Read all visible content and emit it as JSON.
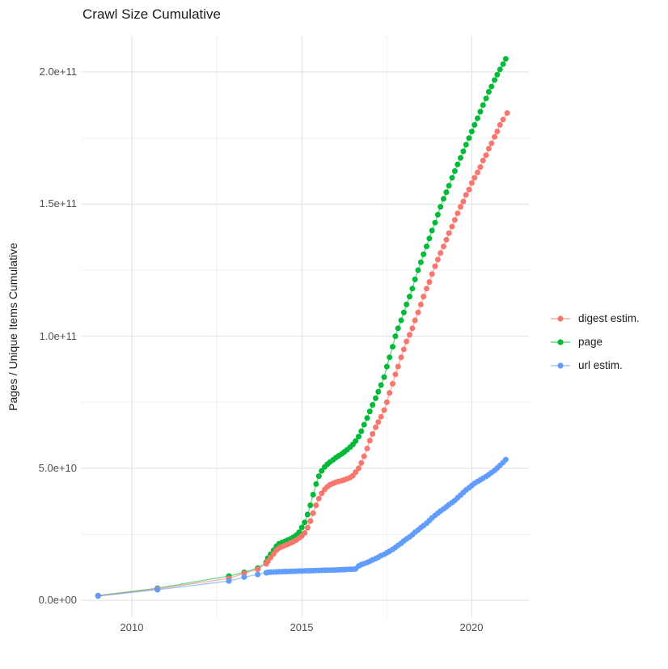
{
  "chart_data": {
    "type": "scatter",
    "title": "Crawl Size Cumulative",
    "xlabel": "",
    "ylabel": "Pages / Unique Items Cumulative",
    "y_unit": "items, values stored in units of 1e9 (billions)",
    "x_ticks": [
      2010,
      2015,
      2020
    ],
    "x_tick_labels": [
      "2010",
      "2015",
      "2020"
    ],
    "x_minor_ticks": [
      2012.5,
      2017.5
    ],
    "y_ticks": [
      0,
      50,
      100,
      150,
      200
    ],
    "y_tick_labels": [
      "0.0e+00",
      "5.0e+10",
      "1.0e+11",
      "1.5e+11",
      "2.0e+11"
    ],
    "y_minor_ticks": [
      25,
      75,
      125,
      175
    ],
    "xlim": [
      2008.52,
      2021.68
    ],
    "ylim": [
      -6.4,
      213.8
    ],
    "grid": true,
    "legend_position": "right",
    "major_grid_color": "#e3e3e3",
    "minor_grid_color": "#f0f0f0",
    "series": [
      {
        "name": "digest estim.",
        "color": "#F8766D",
        "points": [
          [
            2009.0,
            1.7
          ],
          [
            2010.75,
            4.35
          ],
          [
            2012.85,
            8.3
          ],
          [
            2013.3,
            10.2
          ],
          [
            2013.7,
            11.8
          ],
          [
            2013.95,
            13.8
          ],
          [
            2014.0,
            14.8
          ],
          [
            2014.08,
            16.2
          ],
          [
            2014.17,
            17.6
          ],
          [
            2014.25,
            19.0
          ],
          [
            2014.33,
            19.8
          ],
          [
            2014.42,
            20.3
          ],
          [
            2014.5,
            20.8
          ],
          [
            2014.58,
            21.2
          ],
          [
            2014.67,
            21.7
          ],
          [
            2014.75,
            22.2
          ],
          [
            2014.83,
            22.8
          ],
          [
            2014.92,
            23.6
          ],
          [
            2015.0,
            24.4
          ],
          [
            2015.08,
            25.5
          ],
          [
            2015.17,
            27.5
          ],
          [
            2015.25,
            30.0
          ],
          [
            2015.33,
            33.0
          ],
          [
            2015.42,
            36.0
          ],
          [
            2015.5,
            38.5
          ],
          [
            2015.58,
            40.5
          ],
          [
            2015.67,
            42.0
          ],
          [
            2015.75,
            43.0
          ],
          [
            2015.83,
            43.8
          ],
          [
            2015.92,
            44.3
          ],
          [
            2016.0,
            44.7
          ],
          [
            2016.08,
            45.0
          ],
          [
            2016.17,
            45.3
          ],
          [
            2016.25,
            45.6
          ],
          [
            2016.33,
            46.0
          ],
          [
            2016.42,
            46.5
          ],
          [
            2016.5,
            47.2
          ],
          [
            2016.58,
            48.5
          ],
          [
            2016.67,
            50.0
          ],
          [
            2016.75,
            52.0
          ],
          [
            2016.83,
            54.5
          ],
          [
            2016.92,
            57.5
          ],
          [
            2017.0,
            60.5
          ],
          [
            2017.08,
            63.0
          ],
          [
            2017.17,
            65.5
          ],
          [
            2017.25,
            67.5
          ],
          [
            2017.33,
            69.5
          ],
          [
            2017.42,
            72.0
          ],
          [
            2017.5,
            75.0
          ],
          [
            2017.58,
            78.5
          ],
          [
            2017.67,
            82.0
          ],
          [
            2017.75,
            85.5
          ],
          [
            2017.83,
            88.5
          ],
          [
            2017.92,
            92.0
          ],
          [
            2018.0,
            95.0
          ],
          [
            2018.08,
            98.0
          ],
          [
            2018.17,
            100.5
          ],
          [
            2018.25,
            103.0
          ],
          [
            2018.33,
            106.0
          ],
          [
            2018.42,
            109.0
          ],
          [
            2018.5,
            112.0
          ],
          [
            2018.58,
            115.0
          ],
          [
            2018.67,
            118.0
          ],
          [
            2018.75,
            120.5
          ],
          [
            2018.83,
            123.5
          ],
          [
            2018.92,
            126.5
          ],
          [
            2019.0,
            129.0
          ],
          [
            2019.08,
            131.5
          ],
          [
            2019.17,
            134.0
          ],
          [
            2019.25,
            136.5
          ],
          [
            2019.33,
            139.0
          ],
          [
            2019.42,
            141.5
          ],
          [
            2019.5,
            144.0
          ],
          [
            2019.58,
            146.5
          ],
          [
            2019.67,
            149.0
          ],
          [
            2019.75,
            151.0
          ],
          [
            2019.83,
            153.5
          ],
          [
            2019.92,
            155.5
          ],
          [
            2020.0,
            158.0
          ],
          [
            2020.08,
            160.0
          ],
          [
            2020.17,
            162.0
          ],
          [
            2020.25,
            164.0
          ],
          [
            2020.33,
            166.5
          ],
          [
            2020.42,
            168.5
          ],
          [
            2020.5,
            171.0
          ],
          [
            2020.58,
            173.0
          ],
          [
            2020.67,
            175.5
          ],
          [
            2020.75,
            177.5
          ],
          [
            2020.83,
            180.0
          ],
          [
            2020.92,
            182.0
          ],
          [
            2021.04,
            184.5
          ]
        ]
      },
      {
        "name": "page",
        "color": "#00BA38",
        "points": [
          [
            2009.0,
            1.8
          ],
          [
            2010.75,
            4.6
          ],
          [
            2012.85,
            9.2
          ],
          [
            2013.3,
            10.6
          ],
          [
            2013.7,
            12.2
          ],
          [
            2013.95,
            14.5
          ],
          [
            2014.0,
            16.0
          ],
          [
            2014.08,
            17.5
          ],
          [
            2014.17,
            19.0
          ],
          [
            2014.25,
            20.5
          ],
          [
            2014.33,
            21.4
          ],
          [
            2014.42,
            21.9
          ],
          [
            2014.5,
            22.3
          ],
          [
            2014.58,
            22.8
          ],
          [
            2014.67,
            23.3
          ],
          [
            2014.75,
            23.9
          ],
          [
            2014.83,
            24.6
          ],
          [
            2014.92,
            25.8
          ],
          [
            2015.0,
            27.6
          ],
          [
            2015.08,
            29.5
          ],
          [
            2015.17,
            32.5
          ],
          [
            2015.25,
            36.0
          ],
          [
            2015.33,
            40.0
          ],
          [
            2015.42,
            44.0
          ],
          [
            2015.5,
            47.0
          ],
          [
            2015.58,
            49.0
          ],
          [
            2015.67,
            50.5
          ],
          [
            2015.75,
            51.5
          ],
          [
            2015.83,
            52.4
          ],
          [
            2015.92,
            53.2
          ],
          [
            2016.0,
            54.0
          ],
          [
            2016.08,
            54.7
          ],
          [
            2016.17,
            55.4
          ],
          [
            2016.25,
            56.2
          ],
          [
            2016.33,
            57.0
          ],
          [
            2016.42,
            58.0
          ],
          [
            2016.5,
            59.0
          ],
          [
            2016.58,
            60.3
          ],
          [
            2016.67,
            62.0
          ],
          [
            2016.75,
            64.0
          ],
          [
            2016.83,
            66.5
          ],
          [
            2016.92,
            69.0
          ],
          [
            2017.0,
            71.5
          ],
          [
            2017.08,
            74.0
          ],
          [
            2017.17,
            76.5
          ],
          [
            2017.25,
            79.0
          ],
          [
            2017.33,
            81.5
          ],
          [
            2017.42,
            84.5
          ],
          [
            2017.5,
            88.5
          ],
          [
            2017.58,
            92.0
          ],
          [
            2017.67,
            96.0
          ],
          [
            2017.75,
            100.0
          ],
          [
            2017.83,
            103.0
          ],
          [
            2017.92,
            106.0
          ],
          [
            2018.0,
            109.0
          ],
          [
            2018.08,
            112.0
          ],
          [
            2018.17,
            115.0
          ],
          [
            2018.25,
            118.0
          ],
          [
            2018.33,
            121.5
          ],
          [
            2018.42,
            125.0
          ],
          [
            2018.5,
            128.0
          ],
          [
            2018.58,
            131.0
          ],
          [
            2018.67,
            134.0
          ],
          [
            2018.75,
            137.0
          ],
          [
            2018.83,
            140.0
          ],
          [
            2018.92,
            143.0
          ],
          [
            2019.0,
            146.0
          ],
          [
            2019.08,
            149.0
          ],
          [
            2019.17,
            152.0
          ],
          [
            2019.25,
            154.5
          ],
          [
            2019.33,
            157.0
          ],
          [
            2019.42,
            160.0
          ],
          [
            2019.5,
            162.5
          ],
          [
            2019.58,
            165.0
          ],
          [
            2019.67,
            167.5
          ],
          [
            2019.75,
            170.0
          ],
          [
            2019.83,
            172.5
          ],
          [
            2019.92,
            175.0
          ],
          [
            2020.0,
            177.5
          ],
          [
            2020.08,
            180.0
          ],
          [
            2020.17,
            182.5
          ],
          [
            2020.25,
            185.0
          ],
          [
            2020.33,
            187.5
          ],
          [
            2020.42,
            190.0
          ],
          [
            2020.5,
            192.5
          ],
          [
            2020.58,
            194.5
          ],
          [
            2020.67,
            197.0
          ],
          [
            2020.75,
            199.0
          ],
          [
            2020.83,
            201.0
          ],
          [
            2020.92,
            203.0
          ],
          [
            2021.0,
            205.0
          ]
        ]
      },
      {
        "name": "url estim.",
        "color": "#619CFF",
        "points": [
          [
            2009.0,
            1.6
          ],
          [
            2010.75,
            4.0
          ],
          [
            2012.85,
            7.3
          ],
          [
            2013.3,
            8.8
          ],
          [
            2013.7,
            9.8
          ],
          [
            2013.95,
            10.4
          ],
          [
            2014.0,
            10.6
          ],
          [
            2014.08,
            10.65
          ],
          [
            2014.17,
            10.7
          ],
          [
            2014.25,
            10.75
          ],
          [
            2014.33,
            10.8
          ],
          [
            2014.42,
            10.85
          ],
          [
            2014.5,
            10.9
          ],
          [
            2014.58,
            10.9
          ],
          [
            2014.67,
            10.95
          ],
          [
            2014.75,
            11.0
          ],
          [
            2014.83,
            11.05
          ],
          [
            2014.92,
            11.1
          ],
          [
            2015.0,
            11.1
          ],
          [
            2015.08,
            11.15
          ],
          [
            2015.17,
            11.2
          ],
          [
            2015.25,
            11.2
          ],
          [
            2015.33,
            11.25
          ],
          [
            2015.42,
            11.3
          ],
          [
            2015.5,
            11.3
          ],
          [
            2015.58,
            11.35
          ],
          [
            2015.67,
            11.4
          ],
          [
            2015.75,
            11.4
          ],
          [
            2015.83,
            11.45
          ],
          [
            2015.92,
            11.5
          ],
          [
            2016.0,
            11.5
          ],
          [
            2016.08,
            11.55
          ],
          [
            2016.17,
            11.6
          ],
          [
            2016.25,
            11.65
          ],
          [
            2016.33,
            11.7
          ],
          [
            2016.42,
            11.75
          ],
          [
            2016.5,
            11.8
          ],
          [
            2016.58,
            11.9
          ],
          [
            2016.67,
            13.0
          ],
          [
            2016.75,
            13.5
          ],
          [
            2016.83,
            13.9
          ],
          [
            2016.92,
            14.3
          ],
          [
            2017.0,
            14.8
          ],
          [
            2017.08,
            15.3
          ],
          [
            2017.17,
            15.8
          ],
          [
            2017.25,
            16.3
          ],
          [
            2017.33,
            16.9
          ],
          [
            2017.42,
            17.4
          ],
          [
            2017.5,
            18.0
          ],
          [
            2017.58,
            18.6
          ],
          [
            2017.67,
            19.3
          ],
          [
            2017.75,
            20.0
          ],
          [
            2017.83,
            20.8
          ],
          [
            2017.92,
            21.6
          ],
          [
            2018.0,
            22.5
          ],
          [
            2018.08,
            23.2
          ],
          [
            2018.17,
            24.0
          ],
          [
            2018.25,
            24.8
          ],
          [
            2018.33,
            25.8
          ],
          [
            2018.42,
            26.6
          ],
          [
            2018.5,
            27.5
          ],
          [
            2018.58,
            28.3
          ],
          [
            2018.67,
            29.2
          ],
          [
            2018.75,
            30.2
          ],
          [
            2018.83,
            31.2
          ],
          [
            2018.92,
            32.2
          ],
          [
            2019.0,
            33.0
          ],
          [
            2019.08,
            33.8
          ],
          [
            2019.17,
            34.6
          ],
          [
            2019.25,
            35.4
          ],
          [
            2019.33,
            36.2
          ],
          [
            2019.42,
            37.0
          ],
          [
            2019.5,
            37.8
          ],
          [
            2019.58,
            38.8
          ],
          [
            2019.67,
            39.8
          ],
          [
            2019.75,
            40.8
          ],
          [
            2019.83,
            41.8
          ],
          [
            2019.92,
            42.6
          ],
          [
            2020.0,
            43.5
          ],
          [
            2020.08,
            44.3
          ],
          [
            2020.17,
            45.0
          ],
          [
            2020.25,
            45.6
          ],
          [
            2020.33,
            46.2
          ],
          [
            2020.42,
            46.9
          ],
          [
            2020.5,
            47.6
          ],
          [
            2020.58,
            48.4
          ],
          [
            2020.67,
            49.2
          ],
          [
            2020.75,
            50.1
          ],
          [
            2020.83,
            51.1
          ],
          [
            2020.92,
            52.2
          ],
          [
            2021.0,
            53.3
          ]
        ]
      }
    ]
  }
}
